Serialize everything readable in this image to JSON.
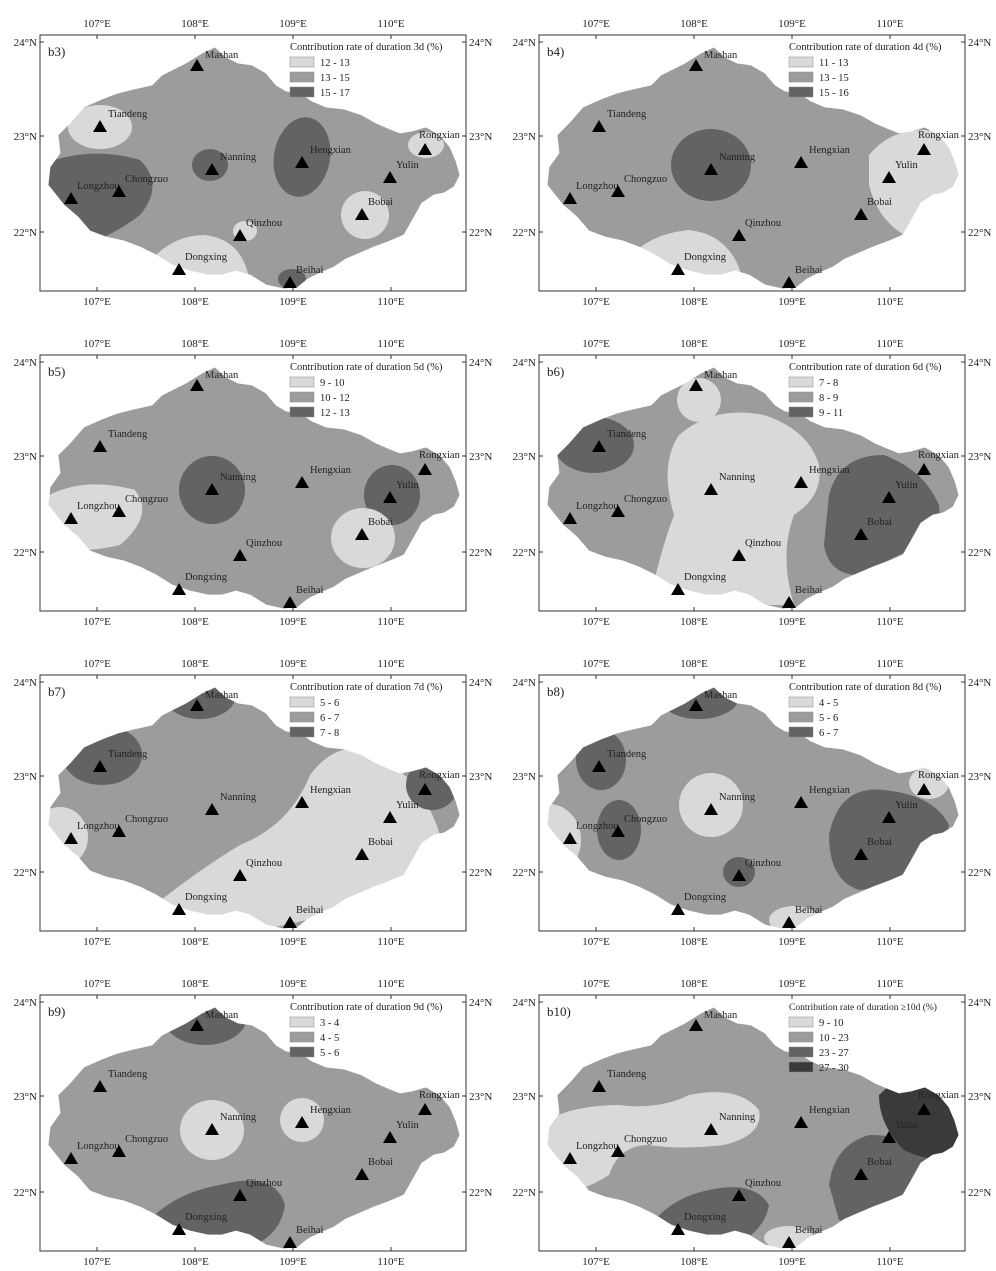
{
  "stations": [
    "Mashan",
    "Tiandeng",
    "Nanning",
    "Hengxian",
    "Rongxian",
    "Yulin",
    "Longzhou",
    "Chongzuo",
    "Bobai",
    "Qinzhou",
    "Dongxing",
    "Beihai"
  ],
  "axes": {
    "lon_labels": [
      "107°E",
      "108°E",
      "109°E",
      "110°E"
    ],
    "lat_labels": [
      "24°N",
      "23°N",
      "22°N"
    ]
  },
  "colors": {
    "light": "#d9d9d9",
    "mid": "#9c9c9c",
    "dark": "#636363",
    "darkest": "#3a3a3a"
  },
  "panels": [
    {
      "id": "b3",
      "label": "b3)",
      "legend_title": "Contribution rate of duration 3d (%)",
      "legend": [
        {
          "text": "12 - 13",
          "color": "#d9d9d9"
        },
        {
          "text": "13 - 15",
          "color": "#9c9c9c"
        },
        {
          "text": "15 - 17",
          "color": "#636363"
        }
      ]
    },
    {
      "id": "b4",
      "label": "b4)",
      "legend_title": "Contribution rate of duration 4d (%)",
      "legend": [
        {
          "text": "11 - 13",
          "color": "#d9d9d9"
        },
        {
          "text": "13 - 15",
          "color": "#9c9c9c"
        },
        {
          "text": "15 - 16",
          "color": "#636363"
        }
      ]
    },
    {
      "id": "b5",
      "label": "b5)",
      "legend_title": "Contribution rate of duration 5d (%)",
      "legend": [
        {
          "text": "9 - 10",
          "color": "#d9d9d9"
        },
        {
          "text": "10 - 12",
          "color": "#9c9c9c"
        },
        {
          "text": "12 - 13",
          "color": "#636363"
        }
      ]
    },
    {
      "id": "b6",
      "label": "b6)",
      "legend_title": "Contribution rate of duration 6d (%)",
      "legend": [
        {
          "text": "7 - 8",
          "color": "#d9d9d9"
        },
        {
          "text": "8 - 9",
          "color": "#9c9c9c"
        },
        {
          "text": "9 - 11",
          "color": "#636363"
        }
      ]
    },
    {
      "id": "b7",
      "label": "b7)",
      "legend_title": "Contribution rate of duration 7d (%)",
      "legend": [
        {
          "text": "5 - 6",
          "color": "#d9d9d9"
        },
        {
          "text": "6 - 7",
          "color": "#9c9c9c"
        },
        {
          "text": "7 - 8",
          "color": "#636363"
        }
      ]
    },
    {
      "id": "b8",
      "label": "b8)",
      "legend_title": "Contribution rate of duration 8d (%)",
      "legend": [
        {
          "text": "4 - 5",
          "color": "#d9d9d9"
        },
        {
          "text": "5 - 6",
          "color": "#9c9c9c"
        },
        {
          "text": "6 - 7",
          "color": "#636363"
        }
      ]
    },
    {
      "id": "b9",
      "label": "b9)",
      "legend_title": "Contribution rate of duration 9d (%)",
      "legend": [
        {
          "text": "3 - 4",
          "color": "#d9d9d9"
        },
        {
          "text": "4 - 5",
          "color": "#9c9c9c"
        },
        {
          "text": "5 - 6",
          "color": "#636363"
        }
      ]
    },
    {
      "id": "b10",
      "label": "b10)",
      "legend_title": "Contribution rate of duration ≥10d (%)",
      "legend": [
        {
          "text": "9 - 10",
          "color": "#d9d9d9"
        },
        {
          "text": "10 - 23",
          "color": "#9c9c9c"
        },
        {
          "text": "23 - 27",
          "color": "#636363"
        },
        {
          "text": "27 - 30",
          "color": "#3a3a3a"
        }
      ]
    }
  ]
}
